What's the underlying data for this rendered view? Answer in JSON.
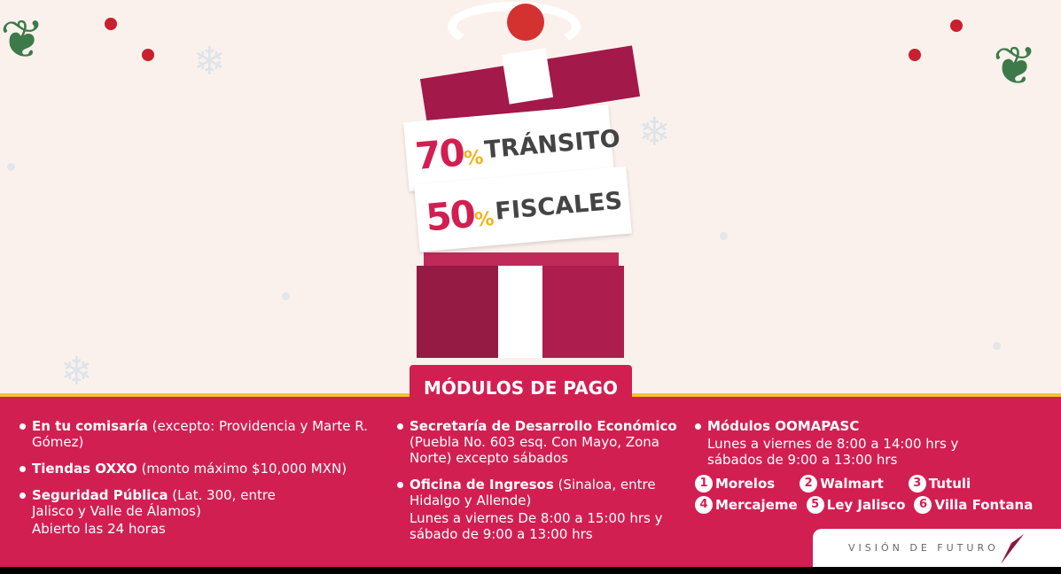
{
  "promo": {
    "transito_pct": "70",
    "transito_word": "TRÁNSITO",
    "fiscales_pct": "50",
    "fiscales_word": "FISCALES",
    "pct_sign": "%"
  },
  "section_title": "MÓDULOS DE PAGO",
  "col1": [
    {
      "bold": "En tu comisaría",
      "text": " (excepto: Providencia y Marte R. Gómez)"
    },
    {
      "bold": "Tiendas OXXO",
      "text": " (monto máximo $10,000 MXN)"
    },
    {
      "bold": "Seguridad Pública",
      "text": " (Lat. 300, entre Jalisco y Valle de Álamos)",
      "sub": "Abierto las 24 horas"
    }
  ],
  "col2": [
    {
      "bold": "Secretaría de Desarrollo Económico",
      "text": " (Puebla No. 603 esq. Con Mayo, Zona Norte) excepto sábados"
    },
    {
      "bold": "Oficina de Ingresos",
      "text": " (Sinaloa, entre Hidalgo y Allende)",
      "sub": "Lunes a viernes De 8:00 a 15:00 hrs y sábado de 9:00 a 13:00 hrs"
    }
  ],
  "col3": {
    "bold": "Módulos OOMAPASC",
    "sub": "Lunes a viernes de 8:00 a 14:00 hrs y sábados de 9:00 a 13:00 hrs",
    "modules": [
      {
        "n": "1",
        "name": "Morelos"
      },
      {
        "n": "2",
        "name": "Walmart"
      },
      {
        "n": "3",
        "name": "Tutuli"
      },
      {
        "n": "4",
        "name": "Mercajeme"
      },
      {
        "n": "5",
        "name": "Ley Jalisco"
      },
      {
        "n": "6",
        "name": "Villa Fontana"
      }
    ]
  },
  "logo_text": "VISIÓN DE FUTURO",
  "colors": {
    "crimson": "#d21f52",
    "background": "#fbf1ec",
    "gold": "#f1c232",
    "box": "#ad1d4e"
  }
}
